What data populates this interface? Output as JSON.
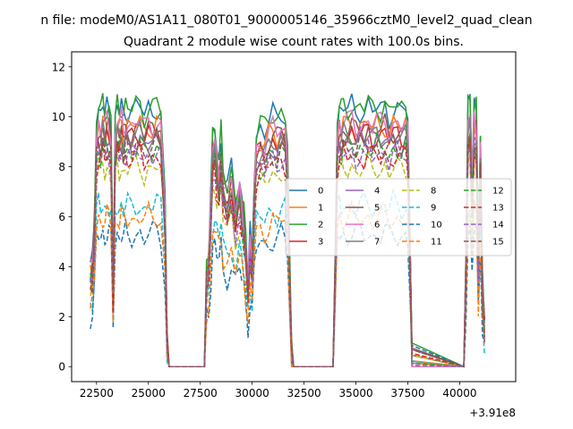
{
  "figure": {
    "suptitle": "n file: modeM0/AS1A11_080T01_9000005146_35966cztM0_level2_quad_clean",
    "title": "Quadrant 2 module wise count rates with 100.0s bins."
  },
  "chart_data": {
    "type": "line",
    "title": "Quadrant 2 module wise count rates with 100.0s bins.",
    "xlabel": "",
    "ylabel": "",
    "x_offset_label": "+3.91e8",
    "xlim": [
      21300,
      42700
    ],
    "ylim": [
      -0.6,
      12.6
    ],
    "xticks": [
      22500,
      25000,
      27500,
      30000,
      32500,
      35000,
      37500,
      40000
    ],
    "yticks": [
      0,
      2,
      4,
      6,
      8,
      10,
      12
    ],
    "grid": false,
    "legend": {
      "placement": "center-right",
      "columns": 4
    },
    "profile": {
      "x": [
        22200,
        22300,
        22400,
        22500,
        22600,
        22700,
        22800,
        22900,
        23000,
        23100,
        23200,
        23300,
        23400,
        23500,
        23600,
        23700,
        23800,
        23900,
        24000,
        24200,
        24400,
        24600,
        24800,
        25000,
        25200,
        25400,
        25600,
        25800,
        25900,
        26000,
        26100,
        27700,
        27800,
        27900,
        28000,
        28100,
        28200,
        28300,
        28400,
        28500,
        28600,
        28800,
        29000,
        29200,
        29400,
        29500,
        29600,
        29700,
        29800,
        29900,
        30000,
        30100,
        30200,
        30400,
        30600,
        30800,
        31000,
        31200,
        31400,
        31600,
        31700,
        31800,
        31900,
        32000,
        33900,
        34000,
        34100,
        34200,
        34300,
        34400,
        34600,
        34800,
        35000,
        35200,
        35400,
        35600,
        35800,
        36000,
        36200,
        36400,
        36600,
        36800,
        37000,
        37200,
        37400,
        37500,
        37600,
        37700,
        40200,
        40300,
        40400,
        40500,
        40600,
        40700,
        40800,
        40900,
        41000,
        41100,
        41200
      ],
      "r": [
        0.36,
        0.38,
        0.55,
        0.9,
        0.95,
        0.92,
        0.96,
        0.93,
        0.95,
        0.94,
        0.9,
        0.3,
        0.9,
        0.95,
        0.93,
        0.96,
        0.92,
        0.95,
        0.94,
        0.93,
        0.95,
        0.96,
        0.92,
        0.95,
        0.94,
        0.96,
        0.93,
        0.6,
        0.1,
        0,
        0,
        0,
        0.35,
        0.4,
        0.6,
        0.85,
        0.88,
        0.8,
        0.75,
        0.85,
        0.7,
        0.65,
        0.72,
        0.6,
        0.7,
        0.62,
        0.55,
        0.45,
        0.3,
        0.48,
        0.4,
        0.7,
        0.85,
        0.88,
        0.86,
        0.9,
        0.92,
        0.9,
        0.94,
        0.92,
        0.8,
        0.4,
        0.05,
        0,
        0,
        0.4,
        0.9,
        0.95,
        0.93,
        0.95,
        0.94,
        0.96,
        0.93,
        0.95,
        0.94,
        0.96,
        0.93,
        0.95,
        0.94,
        0.96,
        0.92,
        0.95,
        0.94,
        0.93,
        0.95,
        0.9,
        0.5,
        0.05,
        0,
        0.4,
        0.95,
        0.98,
        0.7,
        0.97,
        0.95,
        0.4,
        0.85,
        0.3,
        0.15
      ]
    },
    "series": [
      {
        "name": "0",
        "color": "#1f77b4",
        "dash": false,
        "level": 10.9
      },
      {
        "name": "1",
        "color": "#ff7f0e",
        "dash": false,
        "level": 10.2
      },
      {
        "name": "2",
        "color": "#2ca02c",
        "dash": false,
        "level": 11.0
      },
      {
        "name": "3",
        "color": "#d62728",
        "dash": false,
        "level": 9.8
      },
      {
        "name": "4",
        "color": "#9467bd",
        "dash": false,
        "level": 9.5
      },
      {
        "name": "5",
        "color": "#8c564b",
        "dash": false,
        "level": 10.0
      },
      {
        "name": "6",
        "color": "#e377c2",
        "dash": false,
        "level": 10.3
      },
      {
        "name": "7",
        "color": "#7f7f7f",
        "dash": false,
        "level": 9.7
      },
      {
        "name": "8",
        "color": "#bcbd22",
        "dash": true,
        "level": 8.4
      },
      {
        "name": "9",
        "color": "#17becf",
        "dash": true,
        "level": 6.8
      },
      {
        "name": "10",
        "color": "#1f77b4",
        "dash": true,
        "level": 5.6
      },
      {
        "name": "11",
        "color": "#ff7f0e",
        "dash": true,
        "level": 6.3
      },
      {
        "name": "12",
        "color": "#2ca02c",
        "dash": true,
        "level": 9.2
      },
      {
        "name": "13",
        "color": "#d62728",
        "dash": true,
        "level": 8.9
      },
      {
        "name": "14",
        "color": "#9467bd",
        "dash": true,
        "level": 9.0
      },
      {
        "name": "15",
        "color": "#8c564b",
        "dash": true,
        "level": 9.3
      }
    ]
  }
}
